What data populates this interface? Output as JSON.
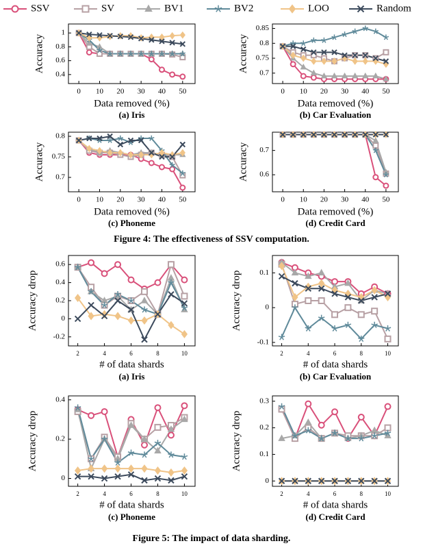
{
  "chart_data": [
    {
      "type": "line",
      "title": "(a) Iris",
      "x_label": "Data removed (%)",
      "y_label": "Accuracy",
      "x": [
        0,
        5,
        10,
        15,
        20,
        25,
        30,
        35,
        40,
        45,
        50
      ],
      "xlim": [
        -5,
        56
      ],
      "xticks": [
        0,
        10,
        20,
        30,
        40,
        50
      ],
      "ylim": [
        0.27,
        1.13
      ],
      "yticks": [
        0.4,
        0.6,
        0.8,
        1
      ],
      "series": [
        {
          "name": "SSV",
          "color": "#d9507a",
          "marker": "circle",
          "values": [
            1,
            0.72,
            0.7,
            0.7,
            0.7,
            0.7,
            0.7,
            0.62,
            0.47,
            0.4,
            0.37
          ]
        },
        {
          "name": "SV",
          "color": "#b7a0a4",
          "marker": "square",
          "values": [
            1,
            0.8,
            0.7,
            0.7,
            0.7,
            0.7,
            0.7,
            0.7,
            0.7,
            0.69,
            0.65
          ]
        },
        {
          "name": "BV1",
          "color": "#a8a8a8",
          "marker": "triangle",
          "values": [
            1,
            0.85,
            0.8,
            0.7,
            0.7,
            0.7,
            0.7,
            0.7,
            0.7,
            0.7,
            0.7
          ]
        },
        {
          "name": "BV2",
          "color": "#5f8a9a",
          "marker": "star",
          "values": [
            1,
            0.9,
            0.75,
            0.7,
            0.7,
            0.7,
            0.7,
            0.7,
            0.7,
            0.7,
            0.7
          ]
        },
        {
          "name": "LOO",
          "color": "#f0c488",
          "marker": "diamond",
          "values": [
            1,
            0.93,
            0.93,
            0.95,
            0.96,
            0.96,
            0.93,
            0.94,
            0.94,
            0.96,
            0.97
          ]
        },
        {
          "name": "Random",
          "color": "#3c4a5c",
          "marker": "cross",
          "values": [
            1,
            0.98,
            0.97,
            0.96,
            0.95,
            0.94,
            0.92,
            0.9,
            0.88,
            0.86,
            0.84
          ]
        }
      ]
    },
    {
      "type": "line",
      "title": "(b) Car Evaluation",
      "x_label": "Data removed (%)",
      "y_label": "Accuracy",
      "x": [
        0,
        5,
        10,
        15,
        20,
        25,
        30,
        35,
        40,
        45,
        50
      ],
      "xlim": [
        -5,
        56
      ],
      "xticks": [
        0,
        10,
        20,
        30,
        40,
        50
      ],
      "ylim": [
        0.665,
        0.865
      ],
      "yticks": [
        0.7,
        0.75,
        0.8,
        0.85
      ],
      "series": [
        {
          "name": "SSV",
          "color": "#d9507a",
          "marker": "circle",
          "values": [
            0.79,
            0.73,
            0.69,
            0.685,
            0.68,
            0.68,
            0.68,
            0.68,
            0.68,
            0.68,
            0.68
          ]
        },
        {
          "name": "SV",
          "color": "#b7a0a4",
          "marker": "square",
          "values": [
            0.79,
            0.77,
            0.76,
            0.76,
            0.75,
            0.74,
            0.75,
            0.76,
            0.76,
            0.75,
            0.77
          ]
        },
        {
          "name": "BV1",
          "color": "#a8a8a8",
          "marker": "triangle",
          "values": [
            0.79,
            0.75,
            0.72,
            0.7,
            0.69,
            0.69,
            0.69,
            0.69,
            0.69,
            0.69,
            0.68
          ]
        },
        {
          "name": "BV2",
          "color": "#5f8a9a",
          "marker": "star",
          "values": [
            0.79,
            0.8,
            0.8,
            0.81,
            0.81,
            0.82,
            0.83,
            0.84,
            0.85,
            0.84,
            0.82
          ]
        },
        {
          "name": "LOO",
          "color": "#f0c488",
          "marker": "diamond",
          "values": [
            0.79,
            0.76,
            0.75,
            0.74,
            0.74,
            0.74,
            0.75,
            0.74,
            0.74,
            0.74,
            0.73
          ]
        },
        {
          "name": "Random",
          "color": "#3c4a5c",
          "marker": "cross",
          "values": [
            0.79,
            0.79,
            0.78,
            0.77,
            0.77,
            0.77,
            0.76,
            0.76,
            0.76,
            0.75,
            0.74
          ]
        }
      ]
    },
    {
      "type": "line",
      "title": "(c) Phoneme",
      "x_label": "Data removed (%)",
      "y_label": "Accuracy",
      "x": [
        0,
        5,
        10,
        15,
        20,
        25,
        30,
        35,
        40,
        45,
        50
      ],
      "xlim": [
        -5,
        56
      ],
      "xticks": [
        0,
        10,
        20,
        30,
        40,
        50
      ],
      "ylim": [
        0.665,
        0.81
      ],
      "yticks": [
        0.7,
        0.75,
        0.8
      ],
      "series": [
        {
          "name": "SSV",
          "color": "#d9507a",
          "marker": "circle",
          "values": [
            0.79,
            0.76,
            0.755,
            0.755,
            0.755,
            0.755,
            0.745,
            0.735,
            0.725,
            0.72,
            0.675
          ]
        },
        {
          "name": "SV",
          "color": "#b7a0a4",
          "marker": "square",
          "values": [
            0.79,
            0.765,
            0.76,
            0.76,
            0.755,
            0.75,
            0.755,
            0.76,
            0.755,
            0.75,
            0.705
          ]
        },
        {
          "name": "BV1",
          "color": "#a8a8a8",
          "marker": "triangle",
          "values": [
            0.79,
            0.77,
            0.76,
            0.765,
            0.76,
            0.755,
            0.76,
            0.76,
            0.755,
            0.755,
            0.755
          ]
        },
        {
          "name": "BV2",
          "color": "#5f8a9a",
          "marker": "star",
          "values": [
            0.79,
            0.795,
            0.79,
            0.79,
            0.795,
            0.785,
            0.795,
            0.795,
            0.765,
            0.73,
            0.71
          ]
        },
        {
          "name": "LOO",
          "color": "#f0c488",
          "marker": "diamond",
          "values": [
            0.79,
            0.77,
            0.765,
            0.76,
            0.76,
            0.755,
            0.755,
            0.755,
            0.76,
            0.755,
            0.76
          ]
        },
        {
          "name": "Random",
          "color": "#3c4a5c",
          "marker": "cross",
          "values": [
            0.79,
            0.795,
            0.795,
            0.8,
            0.78,
            0.79,
            0.79,
            0.76,
            0.75,
            0.75,
            0.78
          ]
        }
      ]
    },
    {
      "type": "line",
      "title": "(d) Credit Card",
      "x_label": "Data removed (%)",
      "y_label": "Accuracy",
      "x": [
        0,
        5,
        10,
        15,
        20,
        25,
        30,
        35,
        40,
        45,
        50
      ],
      "xlim": [
        -5,
        56
      ],
      "xticks": [
        0,
        10,
        20,
        30,
        40,
        50
      ],
      "ylim": [
        0.53,
        0.775
      ],
      "yticks": [
        0.6,
        0.7
      ],
      "series": [
        {
          "name": "SSV",
          "color": "#d9507a",
          "marker": "circle",
          "values": [
            0.765,
            0.765,
            0.765,
            0.765,
            0.765,
            0.765,
            0.765,
            0.765,
            0.765,
            0.59,
            0.555
          ]
        },
        {
          "name": "SV",
          "color": "#b7a0a4",
          "marker": "square",
          "values": [
            0.765,
            0.765,
            0.765,
            0.765,
            0.765,
            0.765,
            0.765,
            0.765,
            0.765,
            0.72,
            0.605
          ]
        },
        {
          "name": "BV1",
          "color": "#a8a8a8",
          "marker": "triangle",
          "values": [
            0.765,
            0.765,
            0.765,
            0.765,
            0.765,
            0.765,
            0.765,
            0.765,
            0.765,
            0.74,
            0.61
          ]
        },
        {
          "name": "BV2",
          "color": "#5f8a9a",
          "marker": "star",
          "values": [
            0.765,
            0.765,
            0.765,
            0.765,
            0.765,
            0.765,
            0.765,
            0.765,
            0.765,
            0.7,
            0.6
          ]
        },
        {
          "name": "LOO",
          "color": "#f0c488",
          "marker": "diamond",
          "values": [
            0.765,
            0.765,
            0.765,
            0.765,
            0.765,
            0.765,
            0.765,
            0.765,
            0.765,
            0.765,
            0.765
          ]
        },
        {
          "name": "Random",
          "color": "#3c4a5c",
          "marker": "cross",
          "values": [
            0.765,
            0.765,
            0.765,
            0.765,
            0.765,
            0.765,
            0.765,
            0.765,
            0.765,
            0.765,
            0.765
          ]
        }
      ]
    },
    {
      "type": "line",
      "title": "(a) Iris",
      "x_label": "# of data shards",
      "y_label": "Accuracy drop",
      "x": [
        2,
        3,
        4,
        5,
        6,
        7,
        8,
        9,
        10
      ],
      "xlim": [
        1.3,
        10.8
      ],
      "xticks": [
        2,
        4,
        6,
        8,
        10
      ],
      "ylim": [
        -0.3,
        0.7
      ],
      "yticks": [
        -0.2,
        0,
        0.2,
        0.4,
        0.6
      ],
      "series": [
        {
          "name": "SSV",
          "color": "#d9507a",
          "marker": "circle",
          "values": [
            0.57,
            0.62,
            0.5,
            0.6,
            0.43,
            0.33,
            0.4,
            0.6,
            0.43
          ]
        },
        {
          "name": "SV",
          "color": "#b7a0a4",
          "marker": "square",
          "values": [
            0.57,
            0.35,
            0.15,
            0.25,
            0.2,
            0.3,
            0.05,
            0.6,
            0.25
          ]
        },
        {
          "name": "BV1",
          "color": "#a8a8a8",
          "marker": "triangle",
          "values": [
            0.57,
            0.3,
            0.2,
            0.25,
            0.1,
            0.2,
            0.05,
            0.45,
            0.1
          ]
        },
        {
          "name": "BV2",
          "color": "#5f8a9a",
          "marker": "star",
          "values": [
            0.57,
            0.3,
            0.15,
            0.27,
            0.2,
            0.1,
            0.05,
            0.4,
            0.12
          ]
        },
        {
          "name": "LOO",
          "color": "#f0c488",
          "marker": "diamond",
          "values": [
            0.23,
            0.03,
            0.05,
            0.03,
            -0.02,
            -0.02,
            0.05,
            -0.07,
            -0.17
          ]
        },
        {
          "name": "Random",
          "color": "#3c4a5c",
          "marker": "cross",
          "values": [
            0,
            0.15,
            0.03,
            0.2,
            0.1,
            -0.23,
            0.05,
            0.27,
            0.17
          ]
        }
      ]
    },
    {
      "type": "line",
      "title": "(b) Car Evaluation",
      "x_label": "# of data shards",
      "y_label": "Accuracy drop",
      "x": [
        2,
        3,
        4,
        5,
        6,
        7,
        8,
        9,
        10
      ],
      "xlim": [
        1.3,
        10.8
      ],
      "xticks": [
        2,
        4,
        6,
        8,
        10
      ],
      "ylim": [
        -0.11,
        0.15
      ],
      "yticks": [
        -0.1,
        0,
        0.1
      ],
      "series": [
        {
          "name": "SSV",
          "color": "#d9507a",
          "marker": "circle",
          "values": [
            0.13,
            0.115,
            0.1,
            0.09,
            0.075,
            0.075,
            0.04,
            0.06,
            0.04
          ]
        },
        {
          "name": "SV",
          "color": "#b7a0a4",
          "marker": "square",
          "values": [
            0.125,
            0.01,
            0.02,
            0.02,
            -0.02,
            0,
            -0.02,
            -0.01,
            -0.09
          ]
        },
        {
          "name": "BV1",
          "color": "#a8a8a8",
          "marker": "triangle",
          "values": [
            0.13,
            0.1,
            0.09,
            0.1,
            0.06,
            0.07,
            0.02,
            0.05,
            0.04
          ]
        },
        {
          "name": "BV2",
          "color": "#5f8a9a",
          "marker": "star",
          "values": [
            -0.085,
            0,
            -0.06,
            -0.03,
            -0.06,
            -0.05,
            -0.09,
            -0.05,
            -0.06
          ]
        },
        {
          "name": "LOO",
          "color": "#f0c488",
          "marker": "diamond",
          "values": [
            0.12,
            0.03,
            0.06,
            0.07,
            0.05,
            0.04,
            0.03,
            0.05,
            0.03
          ]
        },
        {
          "name": "Random",
          "color": "#3c4a5c",
          "marker": "cross",
          "values": [
            0.09,
            0.07,
            0.055,
            0.055,
            0.04,
            0.03,
            0.02,
            0.03,
            0.04
          ]
        }
      ]
    },
    {
      "type": "line",
      "title": "(c) Phoneme",
      "x_label": "# of data shards",
      "y_label": "Accuracy drop",
      "x": [
        2,
        3,
        4,
        5,
        6,
        7,
        8,
        9,
        10
      ],
      "xlim": [
        1.3,
        10.8
      ],
      "xticks": [
        2,
        4,
        6,
        8,
        10
      ],
      "ylim": [
        -0.04,
        0.42
      ],
      "yticks": [
        0,
        0.2,
        0.4
      ],
      "series": [
        {
          "name": "SSV",
          "color": "#d9507a",
          "marker": "circle",
          "values": [
            0.35,
            0.32,
            0.34,
            0.11,
            0.3,
            0.17,
            0.36,
            0.22,
            0.37
          ]
        },
        {
          "name": "SV",
          "color": "#b7a0a4",
          "marker": "square",
          "values": [
            0.34,
            0.1,
            0.21,
            0.11,
            0.28,
            0.2,
            0.26,
            0.27,
            0.31
          ]
        },
        {
          "name": "BV1",
          "color": "#a8a8a8",
          "marker": "triangle",
          "values": [
            0.35,
            0.05,
            0.2,
            0.1,
            0.27,
            0.2,
            0.14,
            0.25,
            0.3
          ]
        },
        {
          "name": "BV2",
          "color": "#5f8a9a",
          "marker": "star",
          "values": [
            0.36,
            0.1,
            0.2,
            0.08,
            0.13,
            0.12,
            0.18,
            0.12,
            0.11
          ]
        },
        {
          "name": "LOO",
          "color": "#f0c488",
          "marker": "diamond",
          "values": [
            0.04,
            0.05,
            0.05,
            0.05,
            0.05,
            0.05,
            0.04,
            0.03,
            0.04
          ]
        },
        {
          "name": "Random",
          "color": "#3c4a5c",
          "marker": "cross",
          "values": [
            0.01,
            0.01,
            0,
            0.01,
            0.02,
            -0.01,
            0,
            -0.01,
            0.01
          ]
        }
      ]
    },
    {
      "type": "line",
      "title": "(d) Credit Card",
      "x_label": "# of data shards",
      "y_label": "Accuracy drop",
      "x": [
        2,
        3,
        4,
        5,
        6,
        7,
        8,
        9,
        10
      ],
      "xlim": [
        1.3,
        10.8
      ],
      "xticks": [
        2,
        4,
        6,
        8,
        10
      ],
      "ylim": [
        -0.02,
        0.32
      ],
      "yticks": [
        0,
        0.1,
        0.2,
        0.3
      ],
      "series": [
        {
          "name": "SSV",
          "color": "#d9507a",
          "marker": "circle",
          "values": [
            0.27,
            0.16,
            0.29,
            0.21,
            0.26,
            0.16,
            0.24,
            0.17,
            0.28
          ]
        },
        {
          "name": "SV",
          "color": "#b7a0a4",
          "marker": "square",
          "values": [
            0.27,
            0.16,
            0.2,
            0.16,
            0.18,
            0.17,
            0.17,
            0.17,
            0.2
          ]
        },
        {
          "name": "BV1",
          "color": "#a8a8a8",
          "marker": "triangle",
          "values": [
            0.16,
            0.17,
            0.22,
            0.16,
            0.18,
            0.16,
            0.17,
            0.19,
            0.17
          ]
        },
        {
          "name": "BV2",
          "color": "#5f8a9a",
          "marker": "star",
          "values": [
            0.28,
            0.17,
            0.19,
            0.16,
            0.18,
            0.16,
            0.16,
            0.17,
            0.18
          ]
        },
        {
          "name": "LOO",
          "color": "#f0c488",
          "marker": "diamond",
          "values": [
            0,
            0,
            0,
            0,
            0,
            0,
            0,
            0,
            0
          ]
        },
        {
          "name": "Random",
          "color": "#3c4a5c",
          "marker": "cross",
          "values": [
            0,
            0,
            0,
            0,
            0,
            0,
            0,
            0,
            0
          ]
        }
      ]
    }
  ],
  "figure_captions": [
    "Figure 4: The effectiveness of SSV computation.",
    "Figure 5: The impact of data sharding."
  ]
}
